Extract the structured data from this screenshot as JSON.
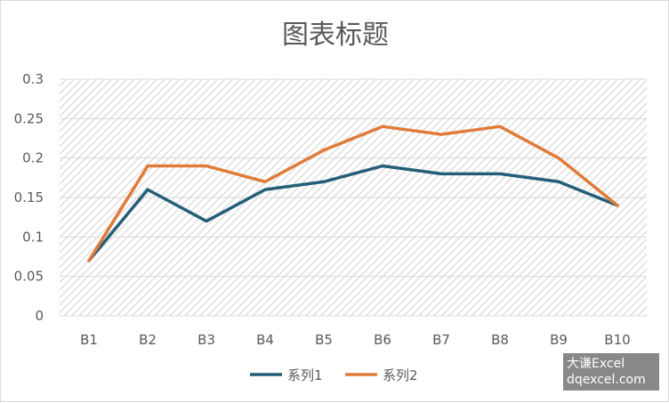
{
  "chart_data": {
    "type": "line",
    "title": "图表标题",
    "categories": [
      "B1",
      "B2",
      "B3",
      "B4",
      "B5",
      "B6",
      "B7",
      "B8",
      "B9",
      "B10"
    ],
    "yticks": [
      "0",
      "0.05",
      "0.1",
      "0.15",
      "0.2",
      "0.25",
      "0.3"
    ],
    "ylim": [
      0,
      0.3
    ],
    "grid": true,
    "legend_position": "bottom",
    "series": [
      {
        "name": "系列1",
        "color": "#255E79",
        "values": [
          0.07,
          0.16,
          0.12,
          0.16,
          0.17,
          0.19,
          0.18,
          0.18,
          0.17,
          0.14
        ]
      },
      {
        "name": "系列2",
        "color": "#E07B39",
        "values": [
          0.07,
          0.19,
          0.19,
          0.17,
          0.21,
          0.24,
          0.23,
          0.24,
          0.2,
          0.14
        ]
      }
    ]
  },
  "watermark": {
    "line1": "大谦Excel",
    "line2": "dqexcel.com"
  }
}
